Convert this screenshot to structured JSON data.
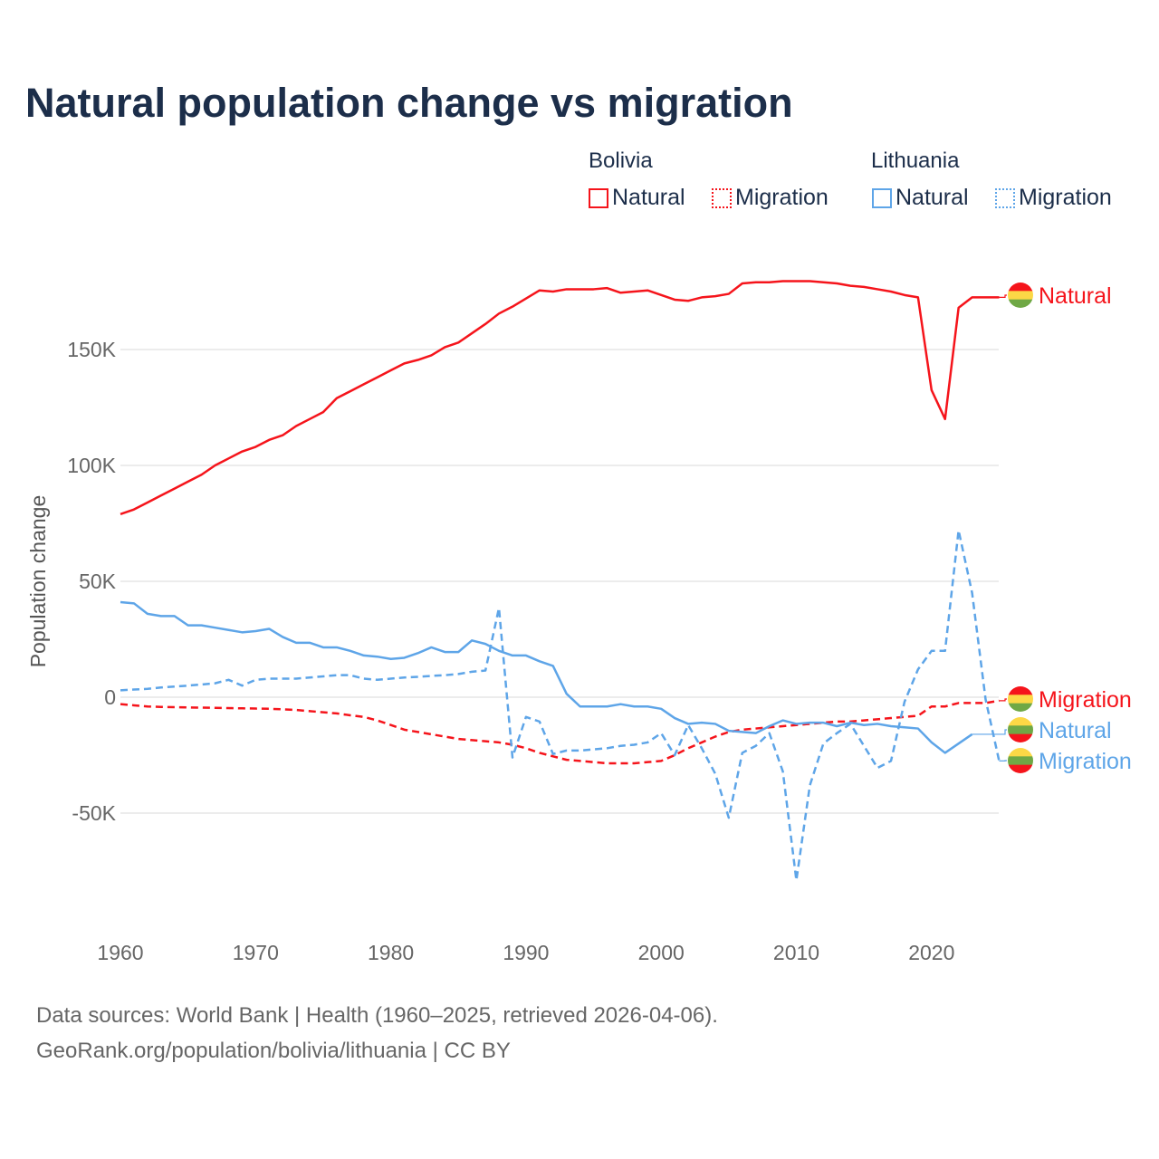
{
  "title": "Natural population change vs migration",
  "legend": {
    "groups": [
      {
        "name": "Bolivia",
        "items": [
          "Natural",
          "Migration"
        ]
      },
      {
        "name": "Lithuania",
        "items": [
          "Natural",
          "Migration"
        ]
      }
    ]
  },
  "colors": {
    "bolivia": "#f5141b",
    "lithuania": "#5ea5e8"
  },
  "source_line1": "Data sources: World Bank | Health (1960–2025, retrieved 2026-04-06).",
  "source_line2": "GeoRank.org/population/bolivia/lithuania | CC BY",
  "chart_data": {
    "type": "line",
    "title": "Natural population change vs migration",
    "xlabel": "",
    "ylabel": "Population change",
    "xlim": [
      1960,
      2025
    ],
    "ylim": [
      -90000,
      190000
    ],
    "x_ticks": [
      1960,
      1970,
      1980,
      1990,
      2000,
      2010,
      2020
    ],
    "x_tick_labels": [
      "1960",
      "1970",
      "1980",
      "1990",
      "2000",
      "2010",
      "2020"
    ],
    "y_ticks": [
      -50000,
      0,
      50000,
      100000,
      150000
    ],
    "y_tick_labels": [
      "-50K",
      "0",
      "50K",
      "100K",
      "150K"
    ],
    "grid": true,
    "legend_position": "top-right",
    "series": [
      {
        "name": "Bolivia Natural",
        "label": "Natural",
        "country": "bolivia",
        "dashed": false,
        "start": 1960,
        "values_k": [
          79,
          81,
          84,
          87,
          90,
          93,
          96,
          100,
          103,
          106,
          108,
          111,
          113,
          117,
          120,
          123,
          129,
          132,
          135,
          138,
          141,
          144,
          145.5,
          147.5,
          151,
          153,
          157,
          161,
          165.5,
          168.5,
          172,
          175.5,
          175,
          176,
          176,
          176,
          176.5,
          174.5,
          175,
          175.5,
          173.5,
          171.5,
          171,
          172.5,
          173,
          174,
          178.5,
          179,
          179,
          179.5,
          179.5,
          179.5,
          179,
          178.5,
          177.5,
          177,
          176,
          175,
          173.5,
          172.5,
          132.5,
          120,
          168,
          172.5,
          172.5,
          172.5
        ]
      },
      {
        "name": "Bolivia Migration",
        "label": "Migration",
        "country": "bolivia",
        "dashed": true,
        "start": 1960,
        "values_k": [
          -3,
          -3.5,
          -4,
          -4.2,
          -4.3,
          -4.4,
          -4.5,
          -4.6,
          -4.7,
          -4.8,
          -4.9,
          -5,
          -5.2,
          -5.5,
          -6,
          -6.5,
          -7,
          -7.8,
          -8.5,
          -10,
          -12,
          -14,
          -15,
          -16,
          -17,
          -18,
          -18.5,
          -19,
          -19.5,
          -20.5,
          -22,
          -24,
          -25.5,
          -27,
          -27.5,
          -28,
          -28.5,
          -28.5,
          -28.5,
          -28,
          -27.5,
          -25,
          -22,
          -19.5,
          -17,
          -15,
          -14,
          -13.5,
          -13,
          -12.5,
          -12,
          -11.5,
          -11,
          -10.5,
          -10.5,
          -10,
          -9.5,
          -9,
          -8.5,
          -8,
          -4,
          -4,
          -2.5,
          -2.5,
          -2.5,
          -1.5
        ]
      },
      {
        "name": "Lithuania Natural",
        "label": "Natural",
        "country": "lithuania",
        "dashed": false,
        "start": 1960,
        "values_k": [
          41,
          40.5,
          36,
          35,
          35,
          31,
          31,
          30,
          29,
          28,
          28.5,
          29.5,
          26,
          23.5,
          23.5,
          21.5,
          21.5,
          20,
          18,
          17.5,
          16.5,
          17,
          19,
          21.5,
          19.5,
          19.5,
          24.5,
          23,
          20,
          18,
          18,
          15.5,
          13.5,
          1.5,
          -4,
          -4,
          -4,
          -3,
          -4,
          -4,
          -5,
          -9,
          -11.5,
          -11,
          -11.5,
          -14.5,
          -15,
          -15.5,
          -12.5,
          -10,
          -11.5,
          -11,
          -11,
          -12.5,
          -11,
          -12,
          -11.5,
          -12.5,
          -13,
          -13.5,
          -19.5,
          -24,
          -20,
          -16
        ]
      },
      {
        "name": "Lithuania Migration",
        "label": "Migration",
        "country": "lithuania",
        "dashed": true,
        "start": 1960,
        "values_k": [
          3,
          3.3,
          3.6,
          4.2,
          4.6,
          5,
          5.5,
          6,
          7.5,
          5,
          7.5,
          8,
          8,
          8,
          8.5,
          9,
          9.5,
          9.5,
          8,
          7.5,
          8,
          8.5,
          8.8,
          9.2,
          9.5,
          10,
          11,
          11.5,
          38.5,
          -26,
          -8.5,
          -10.5,
          -24.5,
          -23,
          -23,
          -22.5,
          -22,
          -21,
          -20.5,
          -19.5,
          -15.5,
          -25,
          -12,
          -22,
          -33,
          -52,
          -24,
          -21,
          -15.5,
          -32,
          -79,
          -38,
          -20,
          -15.5,
          -11.5,
          -21,
          -30.5,
          -27.5,
          -2,
          12,
          20,
          20,
          72,
          45,
          -1,
          -27.5
        ]
      }
    ],
    "end_labels": [
      {
        "text": "Natural",
        "country": "bolivia"
      },
      {
        "text": "Migration",
        "country": "bolivia"
      },
      {
        "text": "Natural",
        "country": "lithuania"
      },
      {
        "text": "Migration",
        "country": "lithuania"
      }
    ]
  }
}
